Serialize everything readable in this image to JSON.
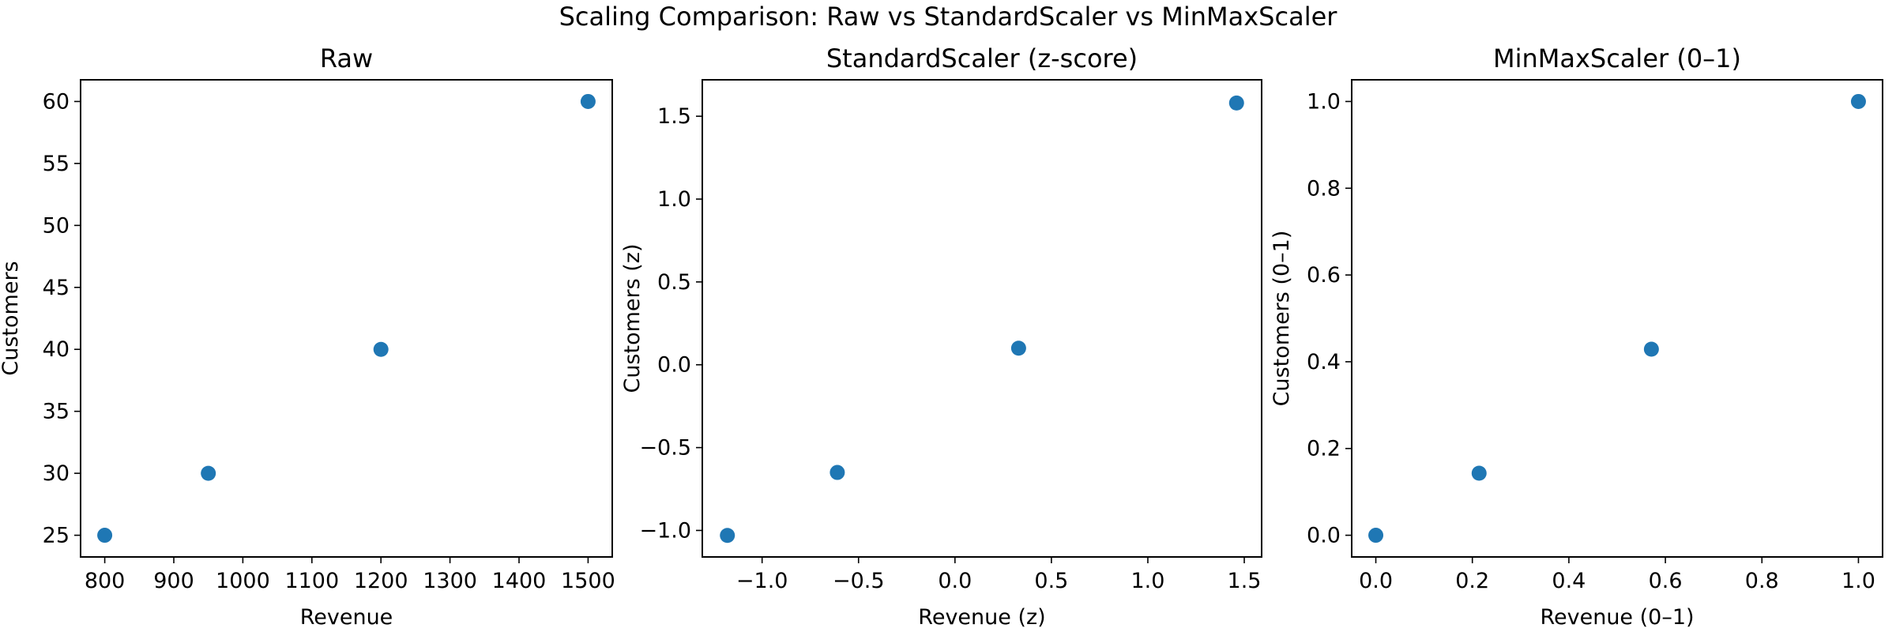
{
  "suptitle": "Scaling Comparison: Raw vs StandardScaler vs MinMaxScaler",
  "colors": {
    "marker": "#1f77b4",
    "axes": "#000000",
    "background": "#ffffff"
  },
  "chart_data": [
    {
      "type": "scatter",
      "title": "Raw",
      "xlabel": "Revenue",
      "ylabel": "Customers",
      "xlim": [
        765,
        1535
      ],
      "ylim": [
        23.25,
        61.75
      ],
      "xticks": [
        800,
        900,
        1000,
        1100,
        1200,
        1300,
        1400,
        1500
      ],
      "xtick_labels": [
        "800",
        "900",
        "1000",
        "1100",
        "1200",
        "1300",
        "1400",
        "1500"
      ],
      "yticks": [
        25,
        30,
        35,
        40,
        45,
        50,
        55,
        60
      ],
      "ytick_labels": [
        "25",
        "30",
        "35",
        "40",
        "45",
        "50",
        "55",
        "60"
      ],
      "grid": false,
      "x": [
        800,
        950,
        1200,
        1500
      ],
      "y": [
        25,
        30,
        40,
        60
      ]
    },
    {
      "type": "scatter",
      "title": "StandardScaler (z-score)",
      "xlabel": "Revenue (z)",
      "ylabel": "Customers (z)",
      "xlim": [
        -1.31,
        1.59
      ],
      "ylim": [
        -1.16,
        1.72
      ],
      "xticks": [
        -1.0,
        -0.5,
        0.0,
        0.5,
        1.0,
        1.5
      ],
      "xtick_labels": [
        "−1.0",
        "−0.5",
        "0.0",
        "0.5",
        "1.0",
        "1.5"
      ],
      "yticks": [
        -1.0,
        -0.5,
        0.0,
        0.5,
        1.0,
        1.5
      ],
      "ytick_labels": [
        "−1.0",
        "−0.5",
        "0.0",
        "0.5",
        "1.0",
        "1.5"
      ],
      "grid": false,
      "x": [
        -1.18,
        -0.61,
        0.33,
        1.46
      ],
      "y": [
        -1.03,
        -0.65,
        0.1,
        1.58
      ]
    },
    {
      "type": "scatter",
      "title": "MinMaxScaler (0–1)",
      "xlabel": "Revenue (0–1)",
      "ylabel": "Customers (0–1)",
      "xlim": [
        -0.05,
        1.05
      ],
      "ylim": [
        -0.05,
        1.05
      ],
      "xticks": [
        0.0,
        0.2,
        0.4,
        0.6,
        0.8,
        1.0
      ],
      "xtick_labels": [
        "0.0",
        "0.2",
        "0.4",
        "0.6",
        "0.8",
        "1.0"
      ],
      "yticks": [
        0.0,
        0.2,
        0.4,
        0.6,
        0.8,
        1.0
      ],
      "ytick_labels": [
        "0.0",
        "0.2",
        "0.4",
        "0.6",
        "0.8",
        "1.0"
      ],
      "grid": false,
      "x": [
        0.0,
        0.214,
        0.571,
        1.0
      ],
      "y": [
        0.0,
        0.143,
        0.429,
        1.0
      ]
    }
  ]
}
